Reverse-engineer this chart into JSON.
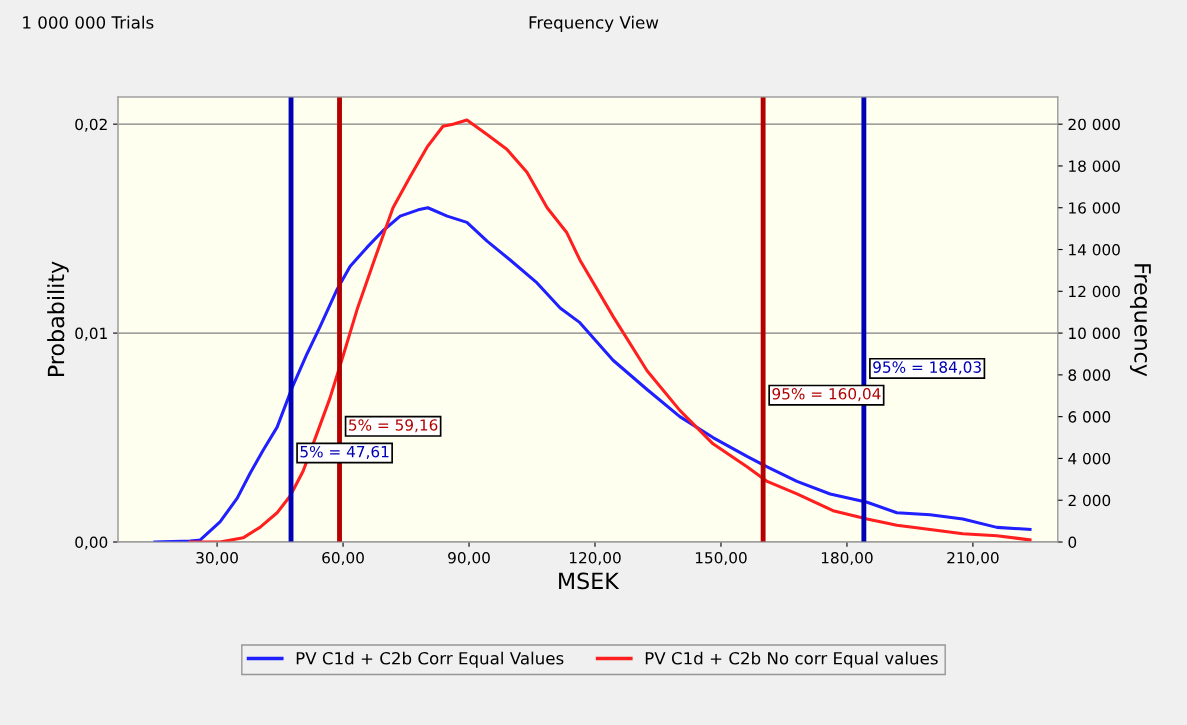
{
  "chart_data": {
    "type": "line",
    "title": "Frequency View",
    "xlabel": "MSEK",
    "ylabel": "Probability",
    "y2label": "Frequency",
    "annotations": [
      "1 000 000 Trials"
    ],
    "xlim": [
      6.4,
      230.2
    ],
    "ylim": [
      0,
      0.0213
    ],
    "y2lim": [
      0,
      21300
    ],
    "xticks": [
      {
        "value": 30,
        "label": "30,00"
      },
      {
        "value": 60,
        "label": "60,00"
      },
      {
        "value": 90,
        "label": "90,00"
      },
      {
        "value": 120,
        "label": "120,00"
      },
      {
        "value": 150,
        "label": "150,00"
      },
      {
        "value": 180,
        "label": "180,00"
      },
      {
        "value": 210,
        "label": "210,00"
      }
    ],
    "yticks": [
      {
        "value": 0,
        "label": "0,00"
      },
      {
        "value": 0.01,
        "label": "0,01"
      },
      {
        "value": 0.02,
        "label": "0,02"
      }
    ],
    "y2ticks": [
      0,
      {
        "value": 2000,
        "label": "2 000"
      },
      {
        "value": 4000,
        "label": "4 000"
      },
      {
        "value": 6000,
        "label": "6 000"
      },
      {
        "value": 8000,
        "label": "8 000"
      },
      {
        "value": 10000,
        "label": "10 000"
      },
      {
        "value": 12000,
        "label": "12 000"
      },
      {
        "value": 14000,
        "label": "14 000"
      },
      {
        "value": 16000,
        "label": "16 000"
      },
      {
        "value": 18000,
        "label": "18 000"
      },
      {
        "value": 20000,
        "label": "20 000"
      }
    ],
    "grid": "y",
    "legend": "bottom",
    "marker": "none",
    "line_style": "solid",
    "series": [
      {
        "name": "PV C1d + C2b Corr Equal Values",
        "color": "#1f1fff",
        "x": [
          15.2,
          23.6,
          26,
          30.7,
          34.8,
          37.9,
          41,
          44.3,
          47.9,
          51.4,
          54.5,
          58.6,
          61.7,
          65.7,
          69.5,
          73.6,
          77.9,
          80.2,
          84.8,
          89.5,
          94.3,
          99.8,
          106.2,
          111.7,
          116.4,
          124.3,
          132.4,
          140.2,
          148.1,
          156.2,
          161,
          168.1,
          176,
          184.8,
          191.9,
          199.8,
          207.6,
          215.7,
          223.6
        ],
        "values": [
          0,
          5e-05,
          0.0001,
          0.00096,
          0.0021,
          0.0033,
          0.0044,
          0.0055,
          0.0074,
          0.009,
          0.0103,
          0.0121,
          0.0132,
          0.0141,
          0.0149,
          0.0156,
          0.0159,
          0.016,
          0.0156,
          0.0153,
          0.0144,
          0.0135,
          0.0124,
          0.0112,
          0.0105,
          0.0087,
          0.0073,
          0.006,
          0.005,
          0.0041,
          0.0036,
          0.0029,
          0.0023,
          0.0019,
          0.0014,
          0.0013,
          0.0011,
          0.0007,
          0.0006
        ]
      },
      {
        "name": "PV C1d + C2b No corr Equal values",
        "color": "#ff1f1f",
        "x": [
          23.6,
          30.7,
          36.2,
          40.2,
          44.3,
          47.4,
          50.5,
          53.8,
          56.9,
          60,
          63.3,
          67.1,
          71.9,
          76,
          80,
          83.8,
          86.2,
          89.5,
          94.3,
          99,
          103.8,
          108.6,
          113.3,
          116.4,
          124.3,
          132.4,
          140.2,
          148.1,
          156.2,
          161,
          168.1,
          176.7,
          184.8,
          191.9,
          199.8,
          207.6,
          215.7,
          223.6
        ],
        "values": [
          0,
          0,
          0.0002,
          0.0007,
          0.0014,
          0.0022,
          0.0034,
          0.0052,
          0.0069,
          0.0089,
          0.0111,
          0.0133,
          0.016,
          0.0175,
          0.0189,
          0.0199,
          0.02,
          0.0202,
          0.0195,
          0.0188,
          0.0177,
          0.016,
          0.0148,
          0.0135,
          0.0108,
          0.0082,
          0.0063,
          0.0047,
          0.0036,
          0.0029,
          0.0023,
          0.0015,
          0.0011,
          0.0008,
          0.0006,
          0.0004,
          0.0003,
          0.0001
        ]
      }
    ],
    "ref_lines": [
      {
        "axis": "x",
        "value": 47.61,
        "label": "5% = 47,61",
        "color": "#0000b4"
      },
      {
        "axis": "x",
        "value": 59.16,
        "label": "5% = 59,16",
        "color": "#b40000"
      },
      {
        "axis": "x",
        "value": 160.04,
        "label": "95% = 160,04",
        "color": "#b40000"
      },
      {
        "axis": "x",
        "value": 184.03,
        "label": "95% = 184,03",
        "color": "#0000b4"
      }
    ]
  }
}
